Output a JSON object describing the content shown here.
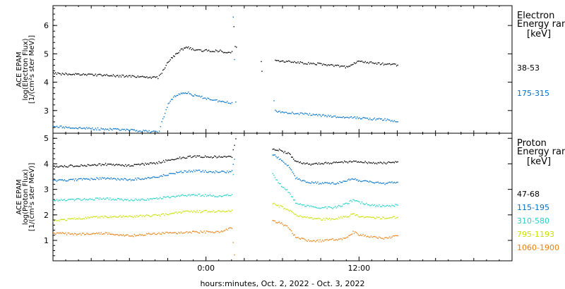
{
  "chart_data": {
    "type": "scatter",
    "xlabel": "hours:minutes, Oct.  2, 2022 - Oct.  3, 2022",
    "x_tick_labels": [
      "0:00",
      "12:00"
    ],
    "x_tick_hours": [
      0,
      12
    ],
    "xlim": [
      -12,
      24
    ],
    "panels": [
      {
        "id": "electron",
        "ylabel": [
          "ACE EPAM",
          "log(Electron Flux)",
          "[1/(cm²s ster MeV)]"
        ],
        "ylim": [
          2.2,
          6.7
        ],
        "yticks": [
          3,
          4,
          5,
          6
        ],
        "legend_title": [
          "Electron",
          "Energy ran"
        ],
        "legend_unit": "[keV]",
        "series": [
          {
            "name": "38-53",
            "color": "#000000",
            "segments": [
              [
                [
                  -12,
                  4.32
                ],
                [
                  -10,
                  4.29
                ],
                [
                  -8,
                  4.26
                ],
                [
                  -6,
                  4.22
                ],
                [
                  -4.5,
                  4.19
                ],
                [
                  -3.8,
                  4.18
                ],
                [
                  -3.5,
                  4.35
                ],
                [
                  -3,
                  4.75
                ],
                [
                  -2.5,
                  4.95
                ],
                [
                  -2,
                  5.15
                ],
                [
                  -1.5,
                  5.25
                ],
                [
                  -1,
                  5.15
                ],
                [
                  0,
                  5.13
                ],
                [
                  1,
                  5.12
                ],
                [
                  1.8,
                  5.06
                ],
                [
                  2,
                  5.1
                ]
              ],
              [
                [
                  2.15,
                  6.0
                ],
                [
                  2.25,
                  5.3
                ],
                [
                  2.35,
                  5.25
                ]
              ],
              [
                [
                  4.3,
                  4.75
                ],
                [
                  4.35,
                  4.4
                ]
              ],
              [
                [
                  5.4,
                  4.78
                ],
                [
                  6,
                  4.76
                ],
                [
                  7,
                  4.72
                ],
                [
                  8,
                  4.68
                ],
                [
                  9,
                  4.65
                ],
                [
                  10,
                  4.6
                ],
                [
                  11,
                  4.55
                ],
                [
                  11.5,
                  4.68
                ],
                [
                  12,
                  4.75
                ],
                [
                  13,
                  4.7
                ],
                [
                  14,
                  4.65
                ],
                [
                  15,
                  4.62
                ]
              ]
            ]
          },
          {
            "name": "175-315",
            "color": "#0070c8",
            "segments": [
              [
                [
                  -12,
                  2.45
                ],
                [
                  -10,
                  2.4
                ],
                [
                  -8,
                  2.36
                ],
                [
                  -6,
                  2.32
                ],
                [
                  -4.5,
                  2.28
                ],
                [
                  -3.7,
                  2.25
                ],
                [
                  -3.5,
                  2.6
                ],
                [
                  -3,
                  3.25
                ],
                [
                  -2.5,
                  3.5
                ],
                [
                  -2,
                  3.62
                ],
                [
                  -1.5,
                  3.65
                ],
                [
                  -1,
                  3.55
                ],
                [
                  0,
                  3.45
                ],
                [
                  1,
                  3.35
                ],
                [
                  1.8,
                  3.28
                ],
                [
                  2,
                  3.3
                ]
              ],
              [
                [
                  2.1,
                  6.35
                ],
                [
                  2.3,
                  3.32
                ]
              ],
              [
                [
                  5.3,
                  3.35
                ],
                [
                  5.4,
                  3.0
                ],
                [
                  6,
                  2.96
                ],
                [
                  7,
                  2.92
                ],
                [
                  8,
                  2.88
                ],
                [
                  9,
                  2.84
                ],
                [
                  10,
                  2.8
                ],
                [
                  11,
                  2.77
                ],
                [
                  12,
                  2.76
                ],
                [
                  13,
                  2.72
                ],
                [
                  14,
                  2.7
                ],
                [
                  15,
                  2.62
                ]
              ]
            ]
          }
        ]
      },
      {
        "id": "proton",
        "ylabel": [
          "ACE EPAM",
          "log(Proton Flux)",
          "[1/(cm²s ster MeV)]"
        ],
        "ylim": [
          0.2,
          5.2
        ],
        "yticks": [
          1,
          2,
          3,
          4,
          5
        ],
        "legend_title": [
          "Proton",
          "Energy ran"
        ],
        "legend_unit": "[keV]",
        "series": [
          {
            "name": "47-68",
            "color": "#000000",
            "segments": [
              [
                [
                  -12,
                  3.9
                ],
                [
                  -10,
                  3.95
                ],
                [
                  -8,
                  4.0
                ],
                [
                  -6,
                  3.95
                ],
                [
                  -4,
                  4.05
                ],
                [
                  -3,
                  4.15
                ],
                [
                  -2,
                  4.25
                ],
                [
                  -1,
                  4.3
                ],
                [
                  0,
                  4.3
                ],
                [
                  1,
                  4.28
                ],
                [
                  2,
                  4.3
                ],
                [
                  2.3,
                  5.0
                ]
              ],
              [
                [
                  5.2,
                  4.6
                ],
                [
                  5.8,
                  4.55
                ],
                [
                  6.5,
                  4.4
                ],
                [
                  7,
                  4.1
                ],
                [
                  8,
                  4.0
                ],
                [
                  9,
                  4.05
                ],
                [
                  10,
                  4.05
                ],
                [
                  11,
                  4.1
                ],
                [
                  12,
                  4.1
                ],
                [
                  13,
                  4.05
                ],
                [
                  14,
                  4.05
                ],
                [
                  15,
                  4.1
                ]
              ]
            ]
          },
          {
            "name": "115-195",
            "color": "#0070c8",
            "segments": [
              [
                [
                  -12,
                  3.35
                ],
                [
                  -10,
                  3.4
                ],
                [
                  -8,
                  3.45
                ],
                [
                  -6,
                  3.4
                ],
                [
                  -4,
                  3.5
                ],
                [
                  -3,
                  3.6
                ],
                [
                  -2,
                  3.7
                ],
                [
                  -1,
                  3.75
                ],
                [
                  0,
                  3.72
                ],
                [
                  1,
                  3.7
                ],
                [
                  2,
                  3.72
                ],
                [
                  2.2,
                  4.2
                ]
              ],
              [
                [
                  5.2,
                  4.4
                ],
                [
                  5.8,
                  4.2
                ],
                [
                  6.5,
                  3.9
                ],
                [
                  7,
                  3.45
                ],
                [
                  8,
                  3.3
                ],
                [
                  9,
                  3.25
                ],
                [
                  10,
                  3.25
                ],
                [
                  11,
                  3.35
                ],
                [
                  11.5,
                  3.45
                ],
                [
                  12,
                  3.35
                ],
                [
                  13,
                  3.3
                ],
                [
                  14,
                  3.25
                ],
                [
                  15,
                  3.3
                ]
              ]
            ]
          },
          {
            "name": "310-580",
            "color": "#20d0c8",
            "segments": [
              [
                [
                  -12,
                  2.6
                ],
                [
                  -10,
                  2.62
                ],
                [
                  -8,
                  2.65
                ],
                [
                  -6,
                  2.6
                ],
                [
                  -4,
                  2.65
                ],
                [
                  -3,
                  2.72
                ],
                [
                  -2,
                  2.78
                ],
                [
                  -1,
                  2.8
                ],
                [
                  0,
                  2.78
                ],
                [
                  1,
                  2.76
                ],
                [
                  2,
                  2.8
                ],
                [
                  2.1,
                  3.6
                ]
              ],
              [
                [
                  5.2,
                  3.6
                ],
                [
                  5.8,
                  3.2
                ],
                [
                  6.5,
                  2.9
                ],
                [
                  7,
                  2.5
                ],
                [
                  8,
                  2.35
                ],
                [
                  9,
                  2.3
                ],
                [
                  10,
                  2.3
                ],
                [
                  11,
                  2.45
                ],
                [
                  11.5,
                  2.6
                ],
                [
                  12,
                  2.5
                ],
                [
                  13,
                  2.4
                ],
                [
                  14,
                  2.35
                ],
                [
                  15,
                  2.4
                ]
              ]
            ]
          },
          {
            "name": "795-1193",
            "color": "#c8e000",
            "segments": [
              [
                [
                  -12,
                  1.8
                ],
                [
                  -10,
                  1.88
                ],
                [
                  -8,
                  1.95
                ],
                [
                  -6,
                  1.95
                ],
                [
                  -4,
                  2.0
                ],
                [
                  -3,
                  2.05
                ],
                [
                  -2,
                  2.12
                ],
                [
                  -1,
                  2.15
                ],
                [
                  0,
                  2.15
                ],
                [
                  1,
                  2.15
                ],
                [
                  2,
                  2.2
                ]
              ],
              [
                [
                  5.2,
                  2.45
                ],
                [
                  5.8,
                  2.35
                ],
                [
                  6.5,
                  2.2
                ],
                [
                  7,
                  2.0
                ],
                [
                  8,
                  1.9
                ],
                [
                  9,
                  1.85
                ],
                [
                  10,
                  1.85
                ],
                [
                  11,
                  1.95
                ],
                [
                  11.5,
                  2.05
                ],
                [
                  12,
                  1.95
                ],
                [
                  13,
                  1.9
                ],
                [
                  14,
                  1.9
                ],
                [
                  15,
                  1.92
                ]
              ]
            ]
          },
          {
            "name": "1060-1900",
            "color": "#e88010",
            "segments": [
              [
                [
                  -12,
                  1.3
                ],
                [
                  -10,
                  1.25
                ],
                [
                  -8,
                  1.3
                ],
                [
                  -6,
                  1.2
                ],
                [
                  -4,
                  1.28
                ],
                [
                  -3,
                  1.3
                ],
                [
                  -2,
                  1.32
                ],
                [
                  -1,
                  1.35
                ],
                [
                  0,
                  1.35
                ],
                [
                  1,
                  1.35
                ],
                [
                  2,
                  1.5
                ],
                [
                  2.2,
                  0.45
                ]
              ],
              [
                [
                  5.2,
                  1.8
                ],
                [
                  5.8,
                  1.7
                ],
                [
                  6.5,
                  1.5
                ],
                [
                  7,
                  1.15
                ],
                [
                  8,
                  1.0
                ],
                [
                  9,
                  1.0
                ],
                [
                  10,
                  1.05
                ],
                [
                  11,
                  1.1
                ],
                [
                  11.5,
                  1.35
                ],
                [
                  12,
                  1.25
                ],
                [
                  13,
                  1.15
                ],
                [
                  14,
                  1.1
                ],
                [
                  15,
                  1.2
                ]
              ]
            ]
          }
        ]
      }
    ]
  }
}
